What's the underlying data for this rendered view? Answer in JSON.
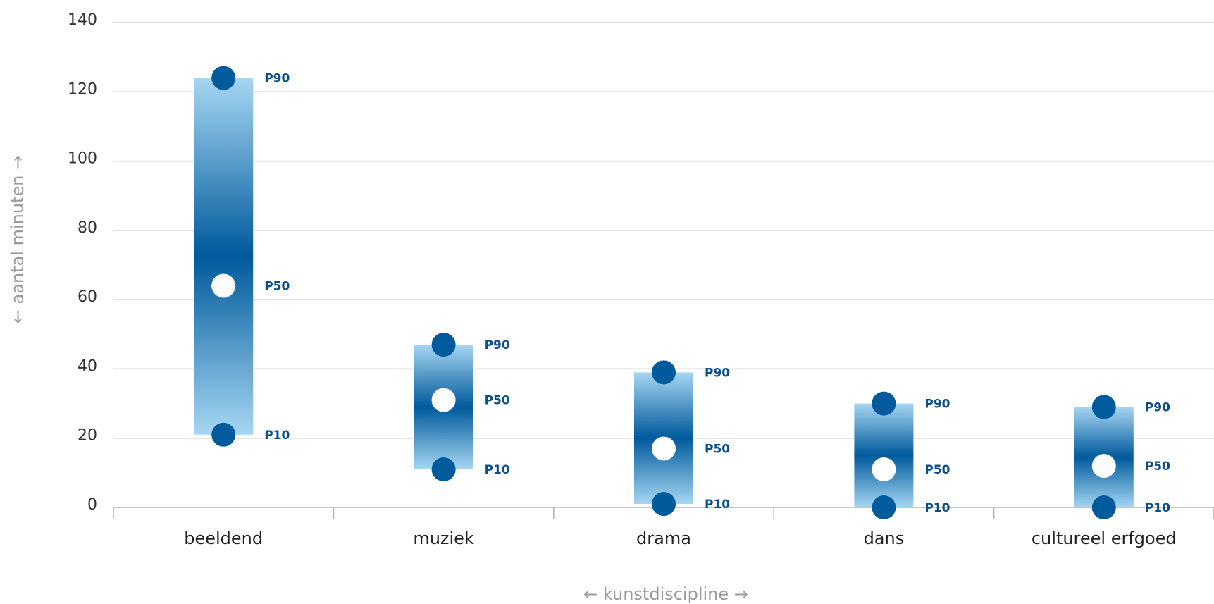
{
  "chart_data": {
    "type": "percentile-range",
    "xlabel": "← kunstdiscipline →",
    "ylabel": "← aantal minuten →",
    "ylim": [
      0,
      140
    ],
    "yticks": [
      0,
      20,
      40,
      60,
      80,
      100,
      120,
      140
    ],
    "grid": true,
    "categories": [
      "beeldend",
      "muziek",
      "drama",
      "dans",
      "cultureel erfgoed"
    ],
    "series": [
      {
        "name": "P10",
        "values": [
          21,
          11,
          1,
          0,
          0
        ]
      },
      {
        "name": "P50",
        "values": [
          64,
          31,
          17,
          11,
          12
        ]
      },
      {
        "name": "P90",
        "values": [
          124,
          47,
          39,
          30,
          29
        ]
      }
    ],
    "colors": {
      "dot_dark": "#005a9c",
      "dot_light": "#ffffff",
      "bar_dark": "#005a9c",
      "bar_light": "#a6d6f2",
      "label": "#0b4f8a",
      "grid": "#cccccc",
      "axis": "#b0b0b0"
    }
  }
}
